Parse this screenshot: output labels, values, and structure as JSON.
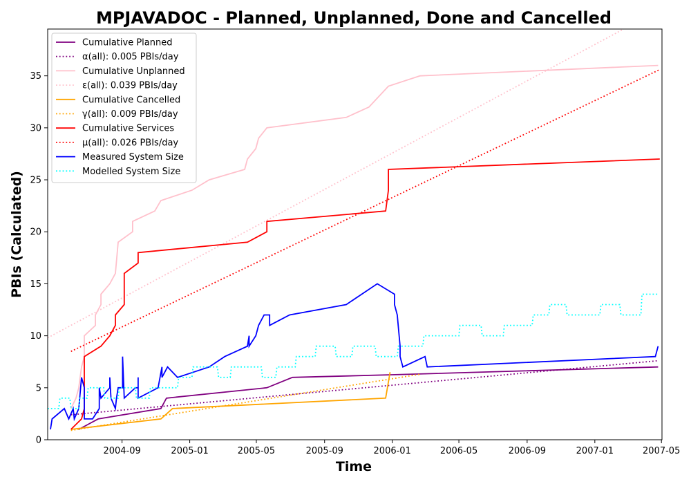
{
  "chart_data": {
    "type": "line",
    "title": "MPJAVADOC - Planned, Unplanned, Done  and Cancelled",
    "xlabel": "Time",
    "ylabel": "PBIs (Calculated)",
    "xlim": [
      "2004-04-20",
      "2007-05-02"
    ],
    "ylim": [
      0,
      39.5
    ],
    "x_ticks": [
      "2004-09-01",
      "2005-01-01",
      "2005-05-01",
      "2005-09-01",
      "2006-01-01",
      "2006-05-01",
      "2006-09-01",
      "2007-01-01",
      "2007-05-01"
    ],
    "x_tick_labels": [
      "2004-09",
      "2005-01",
      "2005-05",
      "2005-09",
      "2006-01",
      "2006-05",
      "2006-09",
      "2007-01",
      "2007-05"
    ],
    "y_ticks": [
      0,
      5,
      10,
      15,
      20,
      25,
      30,
      35
    ],
    "y_tick_labels": [
      "0",
      "5",
      "10",
      "15",
      "20",
      "25",
      "30",
      "35"
    ],
    "grid": false,
    "legend_position": "top-left",
    "series": [
      {
        "name": "Cumulative Planned",
        "color": "#800080",
        "style": "solid",
        "points": [
          [
            "2004-06-15",
            1
          ],
          [
            "2004-07-20",
            2
          ],
          [
            "2004-11-10",
            3
          ],
          [
            "2004-11-20",
            4
          ],
          [
            "2005-05-20",
            5
          ],
          [
            "2005-07-05",
            6
          ],
          [
            "2006-01-01",
            6.25
          ],
          [
            "2007-04-25",
            7
          ]
        ]
      },
      {
        "name": "α(all): 0.005 PBIs/day",
        "color": "#800080",
        "style": "dotted",
        "points": [
          [
            "2004-06-01",
            2.4
          ],
          [
            "2007-04-25",
            7.6
          ]
        ]
      },
      {
        "name": "Cumulative Unplanned",
        "color": "#ffc0cb",
        "style": "solid",
        "points": [
          [
            "2004-06-01",
            3
          ],
          [
            "2004-06-10",
            4
          ],
          [
            "2004-06-15",
            5
          ],
          [
            "2004-06-20",
            7
          ],
          [
            "2004-06-25",
            8
          ],
          [
            "2004-06-25",
            10
          ],
          [
            "2004-07-15",
            11
          ],
          [
            "2004-07-15",
            12
          ],
          [
            "2004-07-25",
            13
          ],
          [
            "2004-07-25",
            14
          ],
          [
            "2004-08-10",
            15
          ],
          [
            "2004-08-20",
            16
          ],
          [
            "2004-08-25",
            19
          ],
          [
            "2004-09-20",
            20
          ],
          [
            "2004-09-20",
            21
          ],
          [
            "2004-10-30",
            22
          ],
          [
            "2004-11-10",
            23
          ],
          [
            "2005-01-05",
            24
          ],
          [
            "2005-02-05",
            25
          ],
          [
            "2005-04-10",
            26
          ],
          [
            "2005-04-15",
            27
          ],
          [
            "2005-04-30",
            28
          ],
          [
            "2005-05-05",
            29
          ],
          [
            "2005-05-20",
            30
          ],
          [
            "2005-10-10",
            31
          ],
          [
            "2005-11-20",
            32
          ],
          [
            "2005-12-25",
            34
          ],
          [
            "2006-02-20",
            35
          ],
          [
            "2007-04-25",
            36
          ]
        ]
      },
      {
        "name": "ε(all): 0.039 PBIs/day",
        "color": "#ffc0cb",
        "style": "dotted",
        "points": [
          [
            "2004-04-20",
            9.8
          ],
          [
            "2007-02-22",
            39.5
          ]
        ]
      },
      {
        "name": "Cumulative Cancelled",
        "color": "#ffa500",
        "style": "solid",
        "points": [
          [
            "2004-06-01",
            1
          ],
          [
            "2004-11-10",
            2
          ],
          [
            "2004-12-01",
            3
          ],
          [
            "2005-12-20",
            4
          ],
          [
            "2005-12-28",
            6.5
          ]
        ]
      },
      {
        "name": "γ(all): 0.009 PBIs/day",
        "color": "#ffa500",
        "style": "dotted",
        "points": [
          [
            "2004-06-01",
            0.9
          ],
          [
            "2006-02-20",
            6.3
          ]
        ]
      },
      {
        "name": "Cumulative Services",
        "color": "#ff0000",
        "style": "solid",
        "points": [
          [
            "2004-06-01",
            1
          ],
          [
            "2004-06-20",
            2
          ],
          [
            "2004-06-25",
            3
          ],
          [
            "2004-06-25",
            8
          ],
          [
            "2004-07-25",
            9
          ],
          [
            "2004-08-10",
            10
          ],
          [
            "2004-08-20",
            11
          ],
          [
            "2004-08-20",
            12
          ],
          [
            "2004-09-05",
            13
          ],
          [
            "2004-09-05",
            16
          ],
          [
            "2004-09-30",
            17
          ],
          [
            "2004-09-30",
            18
          ],
          [
            "2005-04-15",
            19
          ],
          [
            "2005-05-20",
            20
          ],
          [
            "2005-05-20",
            21
          ],
          [
            "2005-12-20",
            22
          ],
          [
            "2005-12-25",
            24
          ],
          [
            "2005-12-25",
            26
          ],
          [
            "2007-04-28",
            27
          ]
        ]
      },
      {
        "name": "μ(all): 0.026 PBIs/day",
        "color": "#ff0000",
        "style": "dotted",
        "points": [
          [
            "2004-06-01",
            8.5
          ],
          [
            "2007-04-28",
            35.6
          ]
        ]
      },
      {
        "name": "Measured System Size",
        "color": "#0000ff",
        "style": "solid",
        "points": [
          [
            "2004-04-25",
            1
          ],
          [
            "2004-04-28",
            2
          ],
          [
            "2004-05-20",
            3
          ],
          [
            "2004-05-28",
            2
          ],
          [
            "2004-06-05",
            3
          ],
          [
            "2004-06-07",
            2
          ],
          [
            "2004-06-15",
            3
          ],
          [
            "2004-06-20",
            6
          ],
          [
            "2004-06-25",
            5
          ],
          [
            "2004-06-25",
            2
          ],
          [
            "2004-07-10",
            2
          ],
          [
            "2004-07-22",
            3
          ],
          [
            "2004-07-22",
            5
          ],
          [
            "2004-07-25",
            4
          ],
          [
            "2004-08-10",
            5
          ],
          [
            "2004-08-10",
            6
          ],
          [
            "2004-08-12",
            4
          ],
          [
            "2004-08-20",
            3
          ],
          [
            "2004-08-22",
            4
          ],
          [
            "2004-08-25",
            5
          ],
          [
            "2004-09-02",
            5
          ],
          [
            "2004-09-02",
            8
          ],
          [
            "2004-09-05",
            4
          ],
          [
            "2004-09-25",
            5
          ],
          [
            "2004-09-30",
            5
          ],
          [
            "2004-09-30",
            6
          ],
          [
            "2004-09-30",
            4
          ],
          [
            "2004-11-05",
            5
          ],
          [
            "2004-11-12",
            7
          ],
          [
            "2004-11-12",
            6
          ],
          [
            "2004-11-22",
            7
          ],
          [
            "2004-12-10",
            6
          ],
          [
            "2005-02-05",
            7
          ],
          [
            "2005-03-05",
            8
          ],
          [
            "2005-04-15",
            9
          ],
          [
            "2005-04-18",
            10
          ],
          [
            "2005-04-18",
            9
          ],
          [
            "2005-04-30",
            10
          ],
          [
            "2005-05-05",
            11
          ],
          [
            "2005-05-15",
            12
          ],
          [
            "2005-05-25",
            12
          ],
          [
            "2005-05-25",
            11
          ],
          [
            "2005-06-30",
            12
          ],
          [
            "2005-10-10",
            13
          ],
          [
            "2005-12-05",
            15
          ],
          [
            "2006-01-05",
            14
          ],
          [
            "2006-01-05",
            13
          ],
          [
            "2006-01-10",
            12
          ],
          [
            "2006-01-15",
            9
          ],
          [
            "2006-01-15",
            8
          ],
          [
            "2006-01-20",
            7
          ],
          [
            "2006-03-01",
            8
          ],
          [
            "2006-03-05",
            7
          ],
          [
            "2007-04-20",
            8
          ],
          [
            "2007-04-25",
            9
          ]
        ]
      },
      {
        "name": "Modelled System Size",
        "color": "#00ffff",
        "style": "dotted",
        "points": [
          [
            "2004-04-20",
            3
          ],
          [
            "2004-05-10",
            3
          ],
          [
            "2004-05-12",
            4
          ],
          [
            "2004-05-30",
            4
          ],
          [
            "2004-06-01",
            3
          ],
          [
            "2004-06-15",
            3
          ],
          [
            "2004-06-17",
            4
          ],
          [
            "2004-06-30",
            4
          ],
          [
            "2004-07-02",
            5
          ],
          [
            "2004-07-30",
            5
          ],
          [
            "2004-08-01",
            4
          ],
          [
            "2004-08-25",
            4
          ],
          [
            "2004-08-27",
            5
          ],
          [
            "2004-09-25",
            5
          ],
          [
            "2004-09-27",
            4
          ],
          [
            "2004-10-20",
            4
          ],
          [
            "2004-10-22",
            5
          ],
          [
            "2004-12-10",
            5
          ],
          [
            "2004-12-12",
            6
          ],
          [
            "2005-01-05",
            6
          ],
          [
            "2005-01-07",
            7
          ],
          [
            "2005-02-20",
            7
          ],
          [
            "2005-02-22",
            6
          ],
          [
            "2005-03-15",
            6
          ],
          [
            "2005-03-17",
            7
          ],
          [
            "2005-05-10",
            7
          ],
          [
            "2005-05-12",
            6
          ],
          [
            "2005-06-05",
            6
          ],
          [
            "2005-06-07",
            7
          ],
          [
            "2005-07-10",
            7
          ],
          [
            "2005-07-12",
            8
          ],
          [
            "2005-08-15",
            8
          ],
          [
            "2005-08-17",
            9
          ],
          [
            "2005-09-20",
            9
          ],
          [
            "2005-09-22",
            8
          ],
          [
            "2005-10-20",
            8
          ],
          [
            "2005-10-22",
            9
          ],
          [
            "2005-12-01",
            9
          ],
          [
            "2005-12-03",
            8
          ],
          [
            "2006-01-10",
            8
          ],
          [
            "2006-01-12",
            9
          ],
          [
            "2006-02-25",
            9
          ],
          [
            "2006-02-27",
            10
          ],
          [
            "2006-05-01",
            10
          ],
          [
            "2006-05-03",
            11
          ],
          [
            "2006-06-10",
            11
          ],
          [
            "2006-06-12",
            10
          ],
          [
            "2006-07-20",
            10
          ],
          [
            "2006-07-22",
            11
          ],
          [
            "2006-09-10",
            11
          ],
          [
            "2006-09-12",
            12
          ],
          [
            "2006-10-10",
            12
          ],
          [
            "2006-10-12",
            13
          ],
          [
            "2006-11-10",
            13
          ],
          [
            "2006-11-12",
            12
          ],
          [
            "2007-01-10",
            12
          ],
          [
            "2007-01-12",
            13
          ],
          [
            "2007-02-15",
            13
          ],
          [
            "2007-02-17",
            12
          ],
          [
            "2007-03-25",
            12
          ],
          [
            "2007-03-27",
            14
          ],
          [
            "2007-04-25",
            14
          ]
        ]
      }
    ]
  }
}
